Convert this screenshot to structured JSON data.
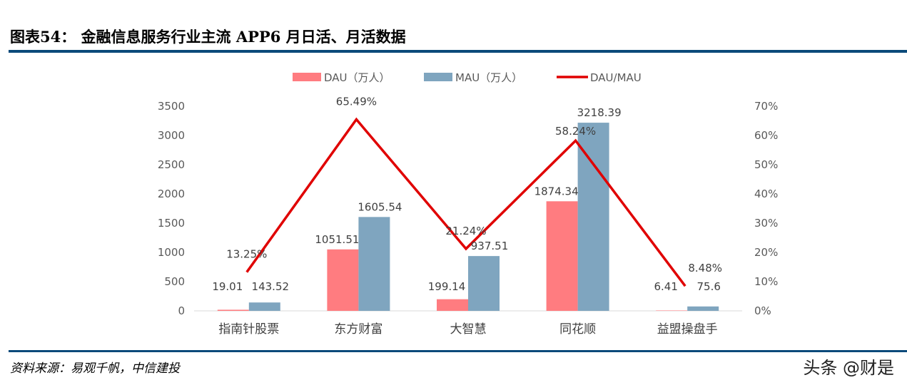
{
  "header": {
    "title": "图表54：  金融信息服务行业主流 APP6 月日活、月活数据"
  },
  "footer": {
    "source": "资料来源：易观千帆，中信建投",
    "watermark": "头条 @财是"
  },
  "chart_data": {
    "type": "bar+line",
    "categories": [
      "指南针股票",
      "东方财富",
      "大智慧",
      "同花顺",
      "益盟操盘手"
    ],
    "series": [
      {
        "name": "DAU（万人）",
        "type": "bar",
        "axis": "left",
        "color": "#ff7c80",
        "values": [
          19.01,
          1051.51,
          199.14,
          1874.34,
          6.41
        ],
        "labels": [
          "19.01",
          "1051.51",
          "199.14",
          "1874.34",
          "6.41"
        ]
      },
      {
        "name": "MAU（万人）",
        "type": "bar",
        "axis": "left",
        "color": "#7fa5bf",
        "values": [
          143.52,
          1605.54,
          937.51,
          3218.39,
          75.6
        ],
        "labels": [
          "143.52",
          "1605.54",
          "937.51",
          "3218.39",
          "75.6"
        ]
      },
      {
        "name": "DAU/MAU",
        "type": "line",
        "axis": "right",
        "color": "#e00000",
        "values": [
          13.25,
          65.49,
          21.24,
          58.24,
          8.48
        ],
        "labels": [
          "13.25%",
          "65.49%",
          "21.24%",
          "58.24%",
          "8.48%"
        ]
      }
    ],
    "left_axis": {
      "ylim": [
        0,
        3500
      ],
      "ticks": [
        "0",
        "500",
        "1000",
        "1500",
        "2000",
        "2500",
        "3000",
        "3500"
      ]
    },
    "right_axis": {
      "ylim": [
        0,
        70
      ],
      "ticks": [
        "0%",
        "10%",
        "20%",
        "30%",
        "40%",
        "50%",
        "60%",
        "70%"
      ]
    },
    "grid": false,
    "legend": "top"
  }
}
